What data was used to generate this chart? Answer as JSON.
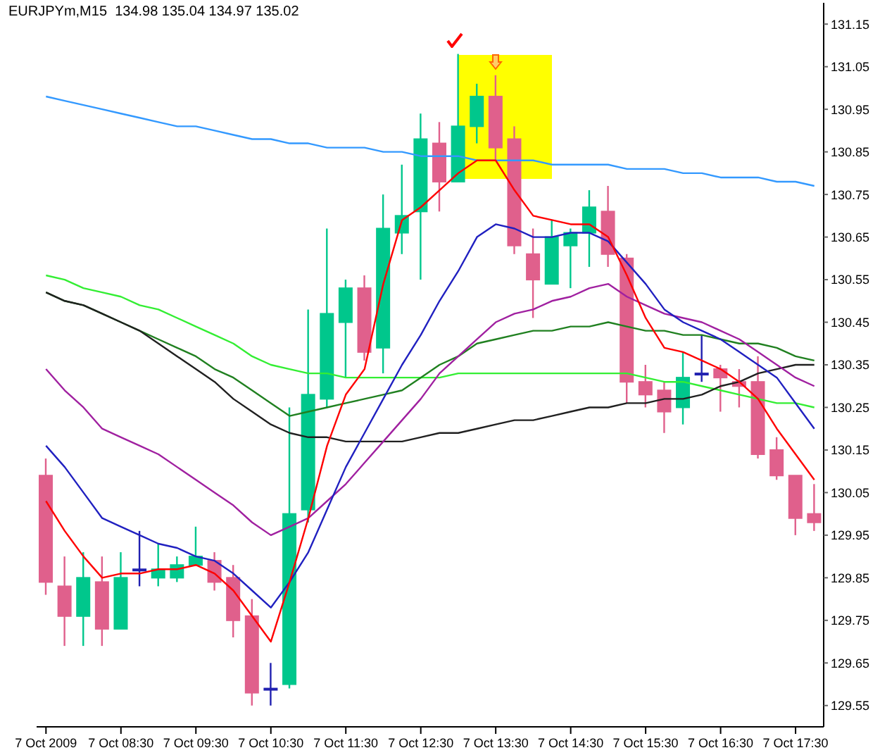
{
  "chart_data": {
    "type": "candlestick",
    "title": "EURJPYm,M15  134.98 135.04 134.97 135.02",
    "categories": [
      "7 Oct 2009",
      null,
      null,
      null,
      "7 Oct 08:30",
      null,
      null,
      null,
      "7 Oct 09:30",
      null,
      null,
      null,
      "7 Oct 10:30",
      null,
      null,
      null,
      "7 Oct 11:30",
      null,
      null,
      null,
      "7 Oct 12:30",
      null,
      null,
      null,
      "7 Oct 13:30",
      null,
      null,
      null,
      "7 Oct 14:30",
      null,
      null,
      null,
      "7 Oct 15:30",
      null,
      null,
      null,
      "7 Oct 16:30",
      null,
      null,
      null,
      "7 Oct 17:30",
      null
    ],
    "ohlc": [
      [
        130.09,
        130.13,
        129.81,
        129.84
      ],
      [
        129.83,
        129.9,
        129.69,
        129.76
      ],
      [
        129.76,
        129.91,
        129.69,
        129.85
      ],
      [
        129.84,
        129.9,
        129.69,
        129.73
      ],
      [
        129.73,
        129.91,
        129.73,
        129.85
      ],
      [
        129.87,
        129.96,
        129.83,
        129.87
      ],
      [
        129.85,
        129.93,
        129.83,
        129.87
      ],
      [
        129.85,
        129.9,
        129.84,
        129.88
      ],
      [
        129.88,
        129.97,
        129.88,
        129.9
      ],
      [
        129.89,
        129.91,
        129.82,
        129.84
      ],
      [
        129.85,
        129.88,
        129.71,
        129.75
      ],
      [
        129.76,
        129.8,
        129.55,
        129.58
      ],
      [
        129.59,
        129.65,
        129.55,
        129.59
      ],
      [
        129.6,
        130.25,
        129.59,
        130.0
      ],
      [
        130.01,
        130.48,
        129.98,
        130.28
      ],
      [
        130.27,
        130.67,
        130.25,
        130.47
      ],
      [
        130.45,
        130.55,
        130.32,
        130.53
      ],
      [
        130.53,
        130.56,
        130.36,
        130.38
      ],
      [
        130.39,
        130.75,
        130.33,
        130.67
      ],
      [
        130.66,
        130.82,
        130.61,
        130.7
      ],
      [
        130.71,
        130.94,
        130.55,
        130.88
      ],
      [
        130.87,
        130.92,
        130.71,
        130.78
      ],
      [
        130.78,
        131.08,
        130.78,
        130.91
      ],
      [
        130.91,
        131.01,
        130.87,
        130.98
      ],
      [
        130.98,
        131.03,
        130.83,
        130.86
      ],
      [
        130.88,
        130.91,
        130.61,
        130.63
      ],
      [
        130.61,
        130.67,
        130.46,
        130.55
      ],
      [
        130.54,
        130.69,
        130.54,
        130.65
      ],
      [
        130.63,
        130.67,
        130.53,
        130.66
      ],
      [
        130.66,
        130.76,
        130.58,
        130.72
      ],
      [
        130.71,
        130.77,
        130.58,
        130.61
      ],
      [
        130.6,
        130.61,
        130.26,
        130.31
      ],
      [
        130.31,
        130.35,
        130.25,
        130.28
      ],
      [
        130.29,
        130.31,
        130.19,
        130.24
      ],
      [
        130.25,
        130.38,
        130.21,
        130.32
      ],
      [
        130.33,
        130.42,
        130.31,
        130.33
      ],
      [
        130.34,
        130.35,
        130.24,
        130.32
      ],
      [
        130.31,
        130.34,
        130.25,
        130.3
      ],
      [
        130.31,
        130.37,
        130.13,
        130.14
      ],
      [
        130.15,
        130.18,
        130.08,
        130.09
      ],
      [
        130.09,
        130.09,
        129.95,
        129.99
      ],
      [
        130.0,
        130.07,
        129.96,
        129.98
      ]
    ],
    "colors": [
      "#e0608c",
      "#e0608c",
      "#00c78c",
      "#e0608c",
      "#00c78c",
      "#2020b0",
      "#00c78c",
      "#00c78c",
      "#00c78c",
      "#e0608c",
      "#e0608c",
      "#e0608c",
      "#2020b0",
      "#00c78c",
      "#00c78c",
      "#00c78c",
      "#00c78c",
      "#e0608c",
      "#00c78c",
      "#00c78c",
      "#00c78c",
      "#e0608c",
      "#00c78c",
      "#00c78c",
      "#e0608c",
      "#e0608c",
      "#e0608c",
      "#00c78c",
      "#00c78c",
      "#00c78c",
      "#e0608c",
      "#e0608c",
      "#e0608c",
      "#e0608c",
      "#00c78c",
      "#2020b0",
      "#e0608c",
      "#e0608c",
      "#e0608c",
      "#e0608c",
      "#e0608c",
      "#e0608c"
    ],
    "series": [
      {
        "type": "line",
        "color": "#3399ff",
        "values": [
          130.98,
          130.97,
          130.96,
          130.95,
          130.94,
          130.93,
          130.92,
          130.91,
          130.91,
          130.9,
          130.89,
          130.88,
          130.88,
          130.87,
          130.87,
          130.86,
          130.86,
          130.86,
          130.85,
          130.85,
          130.84,
          130.84,
          130.84,
          130.83,
          130.83,
          130.83,
          130.83,
          130.82,
          130.82,
          130.82,
          130.82,
          130.81,
          130.81,
          130.81,
          130.8,
          130.8,
          130.79,
          130.79,
          130.79,
          130.78,
          130.78,
          130.77
        ]
      },
      {
        "type": "line",
        "color": "#33ee33",
        "values": [
          130.56,
          130.55,
          130.53,
          130.52,
          130.51,
          130.49,
          130.48,
          130.46,
          130.44,
          130.42,
          130.4,
          130.37,
          130.35,
          130.34,
          130.33,
          130.33,
          130.32,
          130.32,
          130.32,
          130.32,
          130.32,
          130.32,
          130.33,
          130.33,
          130.33,
          130.33,
          130.33,
          130.33,
          130.33,
          130.33,
          130.33,
          130.33,
          130.32,
          130.31,
          130.31,
          130.3,
          130.29,
          130.28,
          130.27,
          130.26,
          130.26,
          130.25
        ]
      },
      {
        "type": "line",
        "color": "#208020",
        "values": [
          130.52,
          130.5,
          130.49,
          130.47,
          130.45,
          130.43,
          130.41,
          130.39,
          130.37,
          130.34,
          130.32,
          130.29,
          130.26,
          130.23,
          130.24,
          130.25,
          130.26,
          130.27,
          130.28,
          130.29,
          130.32,
          130.35,
          130.37,
          130.4,
          130.41,
          130.42,
          130.43,
          130.43,
          130.44,
          130.44,
          130.45,
          130.44,
          130.43,
          130.43,
          130.42,
          130.42,
          130.41,
          130.4,
          130.4,
          130.39,
          130.37,
          130.36
        ]
      },
      {
        "type": "line",
        "color": "#202020",
        "values": [
          130.52,
          130.5,
          130.49,
          130.47,
          130.45,
          130.43,
          130.4,
          130.37,
          130.34,
          130.31,
          130.27,
          130.24,
          130.21,
          130.19,
          130.18,
          130.18,
          130.17,
          130.17,
          130.17,
          130.17,
          130.18,
          130.19,
          130.19,
          130.2,
          130.21,
          130.22,
          130.22,
          130.23,
          130.24,
          130.25,
          130.25,
          130.26,
          130.26,
          130.27,
          130.27,
          130.28,
          130.3,
          130.31,
          130.33,
          130.34,
          130.35,
          130.35
        ]
      },
      {
        "type": "line",
        "color": "#a020a0",
        "values": [
          130.34,
          130.29,
          130.25,
          130.2,
          130.18,
          130.16,
          130.14,
          130.11,
          130.08,
          130.05,
          130.02,
          129.98,
          129.95,
          129.97,
          129.99,
          130.03,
          130.07,
          130.12,
          130.17,
          130.22,
          130.27,
          130.33,
          130.37,
          130.41,
          130.45,
          130.47,
          130.48,
          130.5,
          130.51,
          130.53,
          130.54,
          130.51,
          130.49,
          130.47,
          130.46,
          130.45,
          130.43,
          130.41,
          130.38,
          130.35,
          130.32,
          130.3
        ]
      },
      {
        "type": "line",
        "color": "#2020c0",
        "values": [
          130.16,
          130.11,
          130.05,
          129.99,
          129.97,
          129.95,
          129.93,
          129.92,
          129.9,
          129.89,
          129.86,
          129.82,
          129.78,
          129.84,
          129.91,
          130.01,
          130.11,
          130.19,
          130.27,
          130.35,
          130.42,
          130.5,
          130.57,
          130.65,
          130.68,
          130.67,
          130.65,
          130.65,
          130.66,
          130.66,
          130.64,
          130.59,
          130.54,
          130.48,
          130.45,
          130.43,
          130.41,
          130.38,
          130.35,
          130.32,
          130.26,
          130.2
        ]
      },
      {
        "type": "line",
        "color": "#ff0000",
        "values": [
          130.03,
          129.96,
          129.9,
          129.85,
          129.86,
          129.86,
          129.87,
          129.87,
          129.88,
          129.86,
          129.82,
          129.76,
          129.7,
          129.84,
          129.99,
          130.16,
          130.28,
          130.34,
          130.54,
          130.69,
          130.72,
          130.76,
          130.8,
          130.83,
          130.83,
          130.76,
          130.7,
          130.69,
          130.68,
          130.68,
          130.65,
          130.56,
          130.46,
          130.39,
          130.38,
          130.36,
          130.34,
          130.31,
          130.27,
          130.2,
          130.14,
          130.08
        ]
      }
    ],
    "ylim": [
      129.5,
      131.2
    ],
    "yticks": [
      129.55,
      129.65,
      129.75,
      129.85,
      129.95,
      130.05,
      130.15,
      130.25,
      130.35,
      130.45,
      130.55,
      130.65,
      130.75,
      130.85,
      130.95,
      131.05,
      131.15
    ]
  }
}
